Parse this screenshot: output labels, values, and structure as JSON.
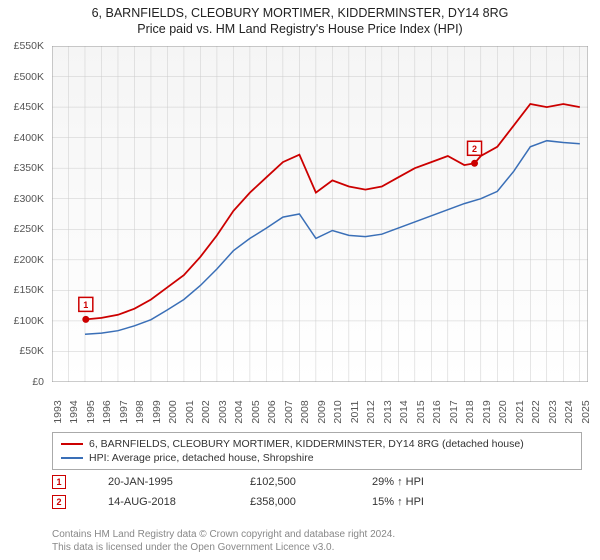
{
  "title": {
    "line1": "6, BARNFIELDS, CLEOBURY MORTIMER, KIDDERMINSTER, DY14 8RG",
    "line2": "Price paid vs. HM Land Registry's House Price Index (HPI)",
    "fontsize": 12.5,
    "color": "#222222"
  },
  "chart": {
    "type": "line",
    "background_color": "#ffffff",
    "plot_background_top": "#f5f5f5",
    "plot_background_bottom": "#ffffff",
    "grid_color": "#cccccc",
    "grid_width": 0.5,
    "xlim": [
      1993,
      2025.5
    ],
    "ylim": [
      0,
      550000
    ],
    "ytick_step": 50000,
    "yticks": [
      "£0",
      "£50K",
      "£100K",
      "£150K",
      "£200K",
      "£250K",
      "£300K",
      "£350K",
      "£400K",
      "£450K",
      "£500K",
      "£550K"
    ],
    "xticks": [
      "1993",
      "1994",
      "1995",
      "1996",
      "1997",
      "1998",
      "1999",
      "2000",
      "2001",
      "2002",
      "2003",
      "2004",
      "2005",
      "2006",
      "2007",
      "2008",
      "2009",
      "2010",
      "2011",
      "2012",
      "2013",
      "2014",
      "2015",
      "2016",
      "2017",
      "2018",
      "2019",
      "2020",
      "2021",
      "2022",
      "2023",
      "2024",
      "2025"
    ],
    "axis_label_fontsize": 10.5,
    "axis_label_color": "#555555",
    "series": [
      {
        "name": "property",
        "label": "6, BARNFIELDS, CLEOBURY MORTIMER, KIDDERMINSTER, DY14 8RG (detached house)",
        "color": "#cc0000",
        "width": 1.8,
        "x": [
          1995.05,
          1996,
          1997,
          1998,
          1999,
          2000,
          2001,
          2002,
          2003,
          2004,
          2005,
          2006,
          2007,
          2008,
          2009,
          2010,
          2011,
          2012,
          2013,
          2014,
          2015,
          2016,
          2017,
          2018,
          2018.62,
          2019,
          2020,
          2021,
          2022,
          2023,
          2024,
          2025
        ],
        "y": [
          102500,
          105000,
          110000,
          120000,
          135000,
          155000,
          175000,
          205000,
          240000,
          280000,
          310000,
          335000,
          360000,
          372000,
          310000,
          330000,
          320000,
          315000,
          320000,
          335000,
          350000,
          360000,
          370000,
          355000,
          358000,
          370000,
          385000,
          420000,
          455000,
          450000,
          455000,
          450000
        ]
      },
      {
        "name": "hpi",
        "label": "HPI: Average price, detached house, Shropshire",
        "color": "#3a6fb7",
        "width": 1.5,
        "x": [
          1995,
          1996,
          1997,
          1998,
          1999,
          2000,
          2001,
          2002,
          2003,
          2004,
          2005,
          2006,
          2007,
          2008,
          2009,
          2010,
          2011,
          2012,
          2013,
          2014,
          2015,
          2016,
          2017,
          2018,
          2019,
          2020,
          2021,
          2022,
          2023,
          2024,
          2025
        ],
        "y": [
          78000,
          80000,
          84000,
          92000,
          102000,
          118000,
          135000,
          158000,
          185000,
          215000,
          235000,
          252000,
          270000,
          275000,
          235000,
          248000,
          240000,
          238000,
          242000,
          252000,
          262000,
          272000,
          282000,
          292000,
          300000,
          312000,
          345000,
          385000,
          395000,
          392000,
          390000
        ]
      }
    ],
    "markers": [
      {
        "id": "1",
        "series": "property",
        "x": 1995.05,
        "y": 102500,
        "color": "#cc0000"
      },
      {
        "id": "2",
        "series": "property",
        "x": 2018.62,
        "y": 358000,
        "color": "#cc0000"
      }
    ]
  },
  "legend": {
    "border_color": "#aaaaaa",
    "fontsize": 10.5,
    "items": [
      {
        "color": "#cc0000",
        "label": "6, BARNFIELDS, CLEOBURY MORTIMER, KIDDERMINSTER, DY14 8RG (detached house)"
      },
      {
        "color": "#3a6fb7",
        "label": "HPI: Average price, detached house, Shropshire"
      }
    ]
  },
  "marker_table": {
    "rows": [
      {
        "badge": "1",
        "badge_color": "#cc0000",
        "date": "20-JAN-1995",
        "price": "£102,500",
        "hpi": "29% ↑ HPI"
      },
      {
        "badge": "2",
        "badge_color": "#cc0000",
        "date": "14-AUG-2018",
        "price": "£358,000",
        "hpi": "15% ↑ HPI"
      }
    ]
  },
  "footer": {
    "line1": "Contains HM Land Registry data © Crown copyright and database right 2024.",
    "line2": "This data is licensed under the Open Government Licence v3.0.",
    "color": "#888888",
    "fontsize": 10
  }
}
